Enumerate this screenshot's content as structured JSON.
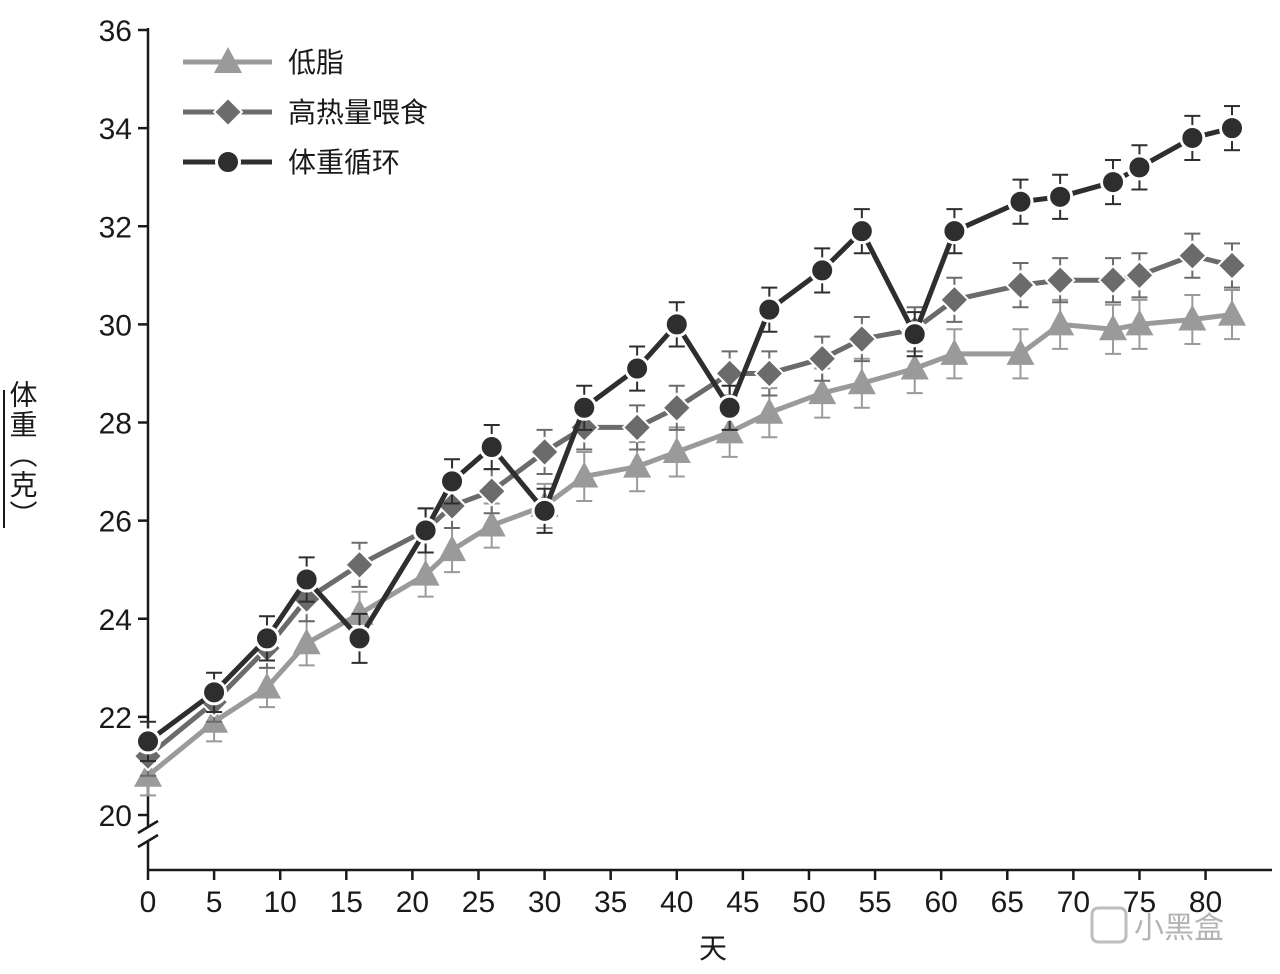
{
  "chart_data": {
    "type": "line",
    "title": "",
    "xlabel": "天",
    "ylabel": "体重（克）",
    "xlim": [
      0,
      82
    ],
    "ylim": [
      20,
      36
    ],
    "x_ticks": [
      0,
      5,
      10,
      15,
      20,
      25,
      30,
      35,
      40,
      45,
      50,
      55,
      60,
      65,
      70,
      75,
      80
    ],
    "y_ticks": [
      20,
      22,
      24,
      26,
      28,
      30,
      32,
      34,
      36
    ],
    "y_axis_break": true,
    "grid": false,
    "legend_position": "top-left",
    "series": [
      {
        "name": "低脂",
        "marker": "triangle",
        "color": "#9a9a9a",
        "x": [
          0,
          5,
          9,
          12,
          16,
          21,
          23,
          26,
          30,
          33,
          37,
          40,
          44,
          47,
          51,
          54,
          58,
          61,
          66,
          69,
          73,
          75,
          79,
          82
        ],
        "y": [
          20.8,
          21.9,
          22.6,
          23.5,
          24.1,
          24.9,
          25.4,
          25.9,
          26.3,
          26.9,
          27.1,
          27.4,
          27.8,
          28.2,
          28.6,
          28.8,
          29.1,
          29.4,
          29.4,
          30.0,
          29.9,
          30.0,
          30.1,
          30.2
        ],
        "error": [
          0.4,
          0.4,
          0.4,
          0.45,
          0.45,
          0.45,
          0.45,
          0.45,
          0.45,
          0.5,
          0.5,
          0.5,
          0.5,
          0.5,
          0.5,
          0.5,
          0.5,
          0.5,
          0.5,
          0.5,
          0.5,
          0.5,
          0.5,
          0.5
        ]
      },
      {
        "name": "高热量喂食",
        "marker": "diamond",
        "color": "#6b6b6b",
        "x": [
          0,
          5,
          9,
          12,
          16,
          21,
          23,
          26,
          30,
          33,
          37,
          40,
          44,
          47,
          51,
          54,
          58,
          61,
          66,
          69,
          73,
          75,
          79,
          82
        ],
        "y": [
          21.2,
          22.3,
          23.4,
          24.4,
          25.1,
          25.8,
          26.3,
          26.6,
          27.4,
          27.9,
          27.9,
          28.3,
          29.0,
          29.0,
          29.3,
          29.7,
          29.9,
          30.5,
          30.8,
          30.9,
          30.9,
          31.0,
          31.4,
          31.2
        ],
        "error": [
          0.4,
          0.4,
          0.4,
          0.45,
          0.45,
          0.45,
          0.45,
          0.45,
          0.45,
          0.45,
          0.45,
          0.45,
          0.45,
          0.45,
          0.45,
          0.45,
          0.45,
          0.45,
          0.45,
          0.45,
          0.45,
          0.45,
          0.45,
          0.45
        ]
      },
      {
        "name": "体重循环",
        "marker": "circle",
        "color": "#2e2e2e",
        "x": [
          0,
          5,
          9,
          12,
          16,
          21,
          23,
          26,
          30,
          33,
          37,
          40,
          44,
          47,
          51,
          54,
          58,
          61,
          66,
          69,
          73,
          75,
          79,
          82
        ],
        "y": [
          21.5,
          22.5,
          23.6,
          24.8,
          23.6,
          25.8,
          26.8,
          27.5,
          26.2,
          28.3,
          29.1,
          30.0,
          28.3,
          30.3,
          31.1,
          31.9,
          29.8,
          31.9,
          32.5,
          32.6,
          32.9,
          33.2,
          33.8,
          34.0
        ],
        "error": [
          0.4,
          0.4,
          0.45,
          0.45,
          0.5,
          0.45,
          0.45,
          0.45,
          0.45,
          0.45,
          0.45,
          0.45,
          0.45,
          0.45,
          0.45,
          0.45,
          0.45,
          0.45,
          0.45,
          0.45,
          0.45,
          0.45,
          0.45,
          0.45
        ]
      }
    ]
  },
  "watermark": {
    "text": "小黑盒"
  }
}
